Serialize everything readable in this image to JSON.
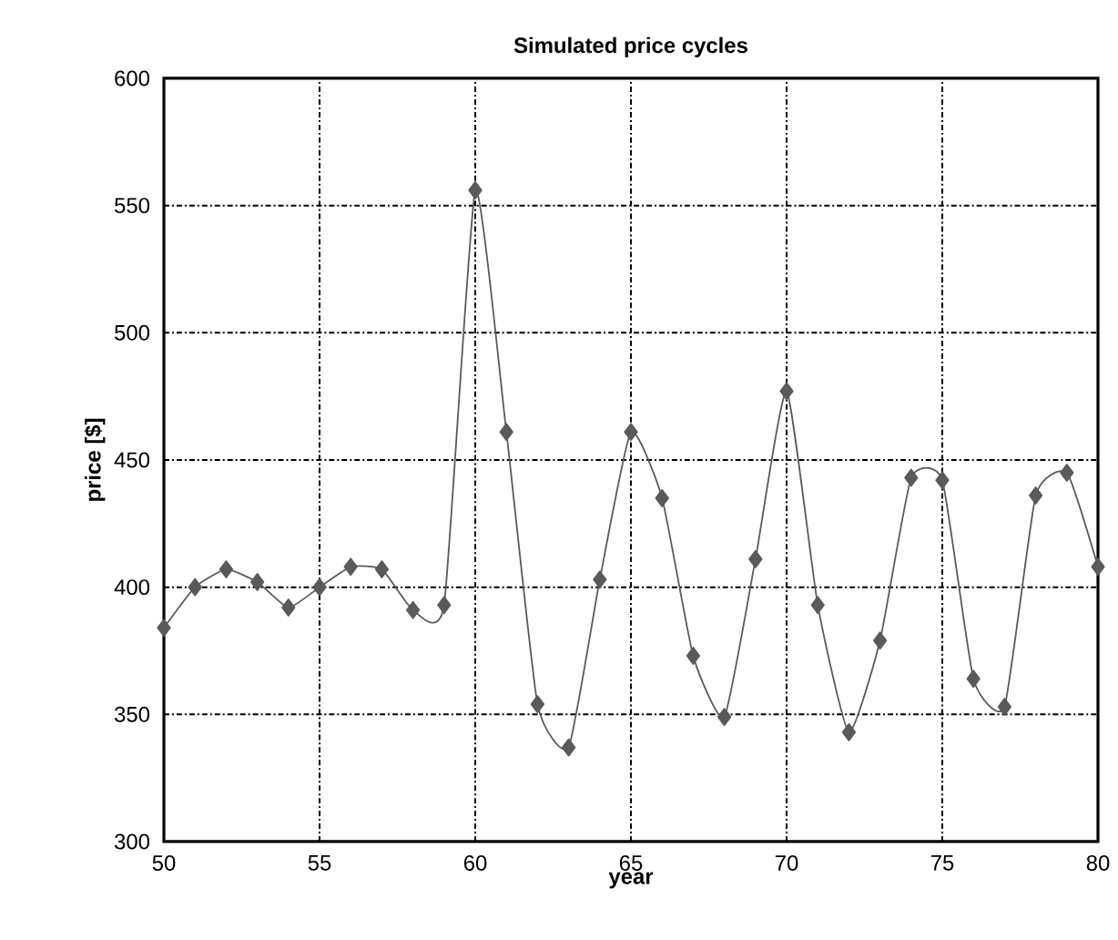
{
  "chart_data": {
    "type": "line",
    "title": "Simulated price cycles",
    "xlabel": "year",
    "ylabel": "price [$]",
    "x": [
      50,
      51,
      52,
      53,
      54,
      55,
      56,
      57,
      58,
      59,
      60,
      61,
      62,
      63,
      64,
      65,
      66,
      67,
      68,
      69,
      70,
      71,
      72,
      73,
      74,
      75,
      76,
      77,
      78,
      79,
      80
    ],
    "series": [
      {
        "color": "#5a5a5a",
        "values": [
          384,
          400,
          407,
          402,
          392,
          400,
          408,
          407,
          391,
          393,
          556,
          461,
          354,
          337,
          403,
          461,
          435,
          373,
          349,
          411,
          477,
          393,
          343,
          379,
          443,
          442,
          364,
          353,
          436,
          445,
          408
        ]
      }
    ],
    "xlim": [
      50,
      80
    ],
    "ylim": [
      300,
      600
    ],
    "xticks": [
      50,
      55,
      60,
      65,
      70,
      75,
      80
    ],
    "yticks": [
      300,
      350,
      400,
      450,
      500,
      550,
      600
    ],
    "grid": true,
    "marker": "diamond",
    "line_style": "solid"
  }
}
